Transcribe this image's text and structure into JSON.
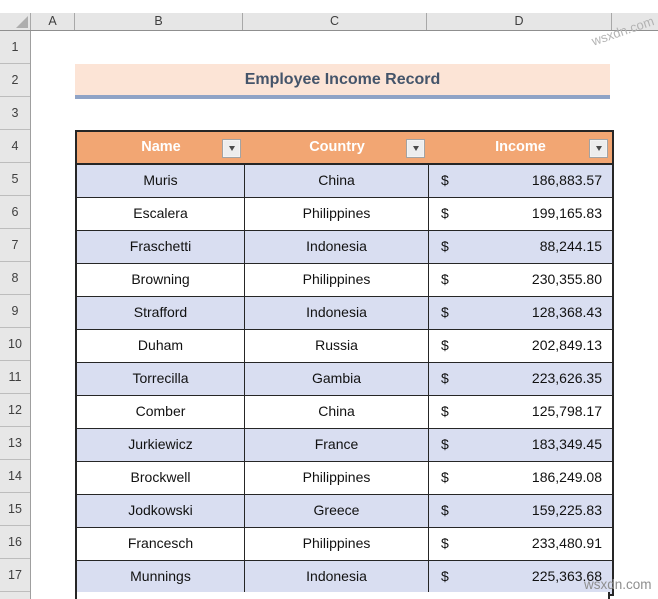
{
  "sheet": {
    "column_letters": [
      "A",
      "B",
      "C",
      "D"
    ],
    "row_numbers": [
      "1",
      "2",
      "3",
      "4",
      "5",
      "6",
      "7",
      "8",
      "9",
      "10",
      "11",
      "12",
      "13",
      "14",
      "15",
      "16",
      "17"
    ],
    "title": "Employee Income Record",
    "table": {
      "headers": [
        {
          "label": "Name"
        },
        {
          "label": "Country"
        },
        {
          "label": "Income"
        }
      ],
      "rows": [
        {
          "name": "Muris",
          "country": "China",
          "currency": "$",
          "income": "186,883.57"
        },
        {
          "name": "Escalera",
          "country": "Philippines",
          "currency": "$",
          "income": "199,165.83"
        },
        {
          "name": "Fraschetti",
          "country": "Indonesia",
          "currency": "$",
          "income": "88,244.15"
        },
        {
          "name": "Browning",
          "country": "Philippines",
          "currency": "$",
          "income": "230,355.80"
        },
        {
          "name": "Strafford",
          "country": "Indonesia",
          "currency": "$",
          "income": "128,368.43"
        },
        {
          "name": "Duham",
          "country": "Russia",
          "currency": "$",
          "income": "202,849.13"
        },
        {
          "name": "Torrecilla",
          "country": "Gambia",
          "currency": "$",
          "income": "223,626.35"
        },
        {
          "name": "Comber",
          "country": "China",
          "currency": "$",
          "income": "125,798.17"
        },
        {
          "name": "Jurkiewicz",
          "country": "France",
          "currency": "$",
          "income": "183,349.45"
        },
        {
          "name": "Brockwell",
          "country": "Philippines",
          "currency": "$",
          "income": "186,249.08"
        },
        {
          "name": "Jodkowski",
          "country": "Greece",
          "currency": "$",
          "income": "159,225.83"
        },
        {
          "name": "Francesch",
          "country": "Philippines",
          "currency": "$",
          "income": "233,480.91"
        },
        {
          "name": "Munnings",
          "country": "Indonesia",
          "currency": "$",
          "income": "225,363.68"
        }
      ]
    },
    "colors": {
      "header_fill": "#F2A673",
      "band_fill": "#D9DEF1",
      "title_fill": "#FCE4D6",
      "title_text": "#44546A",
      "title_underline": "#8FA3C6"
    }
  },
  "watermarks": {
    "top_right": "wsxdn.com",
    "bottom_right": "wsxdn.com"
  }
}
